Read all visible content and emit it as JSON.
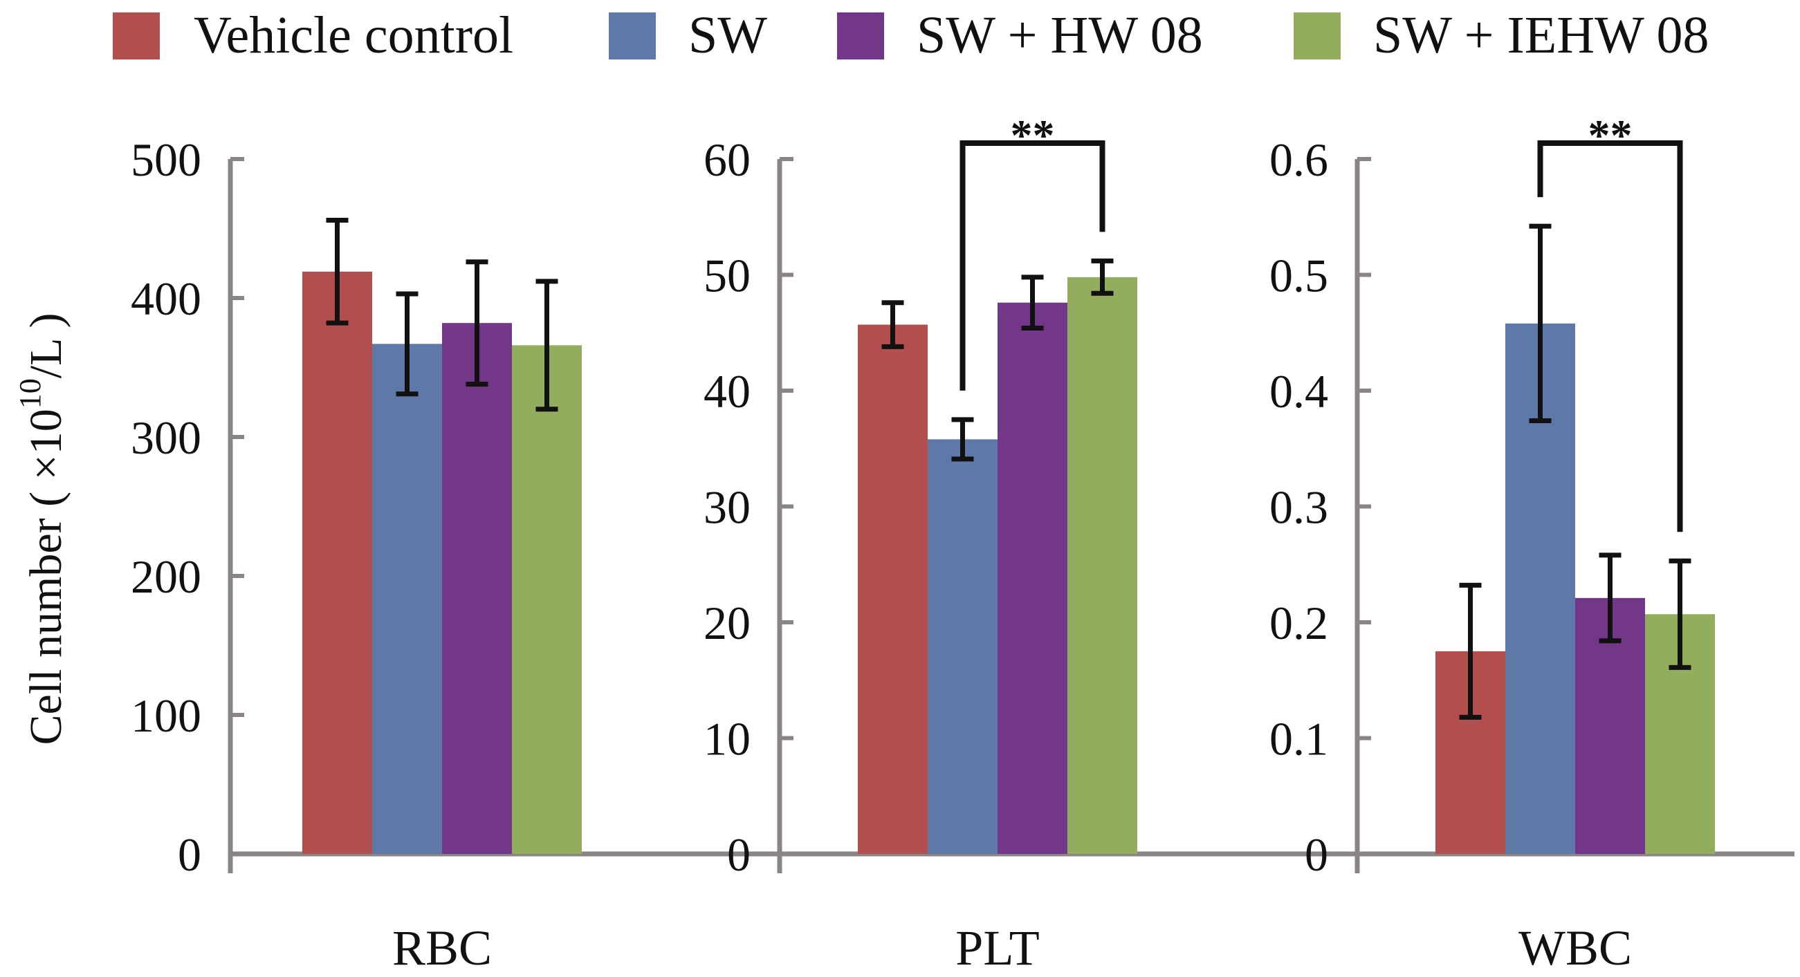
{
  "chart_data": {
    "type": "bar",
    "legend": {
      "placement": "top",
      "entries": [
        {
          "name": "Vehicle control",
          "color": "#B24E4E"
        },
        {
          "name": "SW",
          "color": "#5E78A8"
        },
        {
          "name": "SW + HW 08",
          "color": "#73378A"
        },
        {
          "name": "SW + IEHW 08",
          "color": "#93AD5E"
        }
      ]
    },
    "ylabel_main": "Cell number ( ×10",
    "ylabel_sup": "10",
    "ylabel_tail": "/L )",
    "panels": [
      {
        "xlabel": "RBC",
        "ylim": [
          0,
          500
        ],
        "yticks": [
          "0",
          "100",
          "200",
          "300",
          "400",
          "500"
        ],
        "values": [
          419,
          367,
          382,
          366
        ],
        "errors": [
          37,
          36,
          44,
          46
        ],
        "significance": null
      },
      {
        "xlabel": "PLT",
        "ylim": [
          0,
          60
        ],
        "yticks": [
          "0",
          "10",
          "20",
          "30",
          "40",
          "50",
          "60"
        ],
        "values": [
          45.7,
          35.8,
          47.6,
          49.8
        ],
        "errors": [
          1.9,
          1.7,
          2.2,
          1.4
        ],
        "significance": {
          "from": 1,
          "to": 3,
          "label": "**"
        }
      },
      {
        "xlabel": "WBC",
        "ylim": [
          0,
          0.6
        ],
        "yticks": [
          "0",
          "0.1",
          "0.2",
          "0.3",
          "0.4",
          "0.5",
          "0.6"
        ],
        "values": [
          0.175,
          0.458,
          0.221,
          0.207
        ],
        "errors": [
          0.057,
          0.084,
          0.037,
          0.046
        ],
        "significance": {
          "from": 1,
          "to": 3,
          "label": "**"
        }
      }
    ]
  }
}
